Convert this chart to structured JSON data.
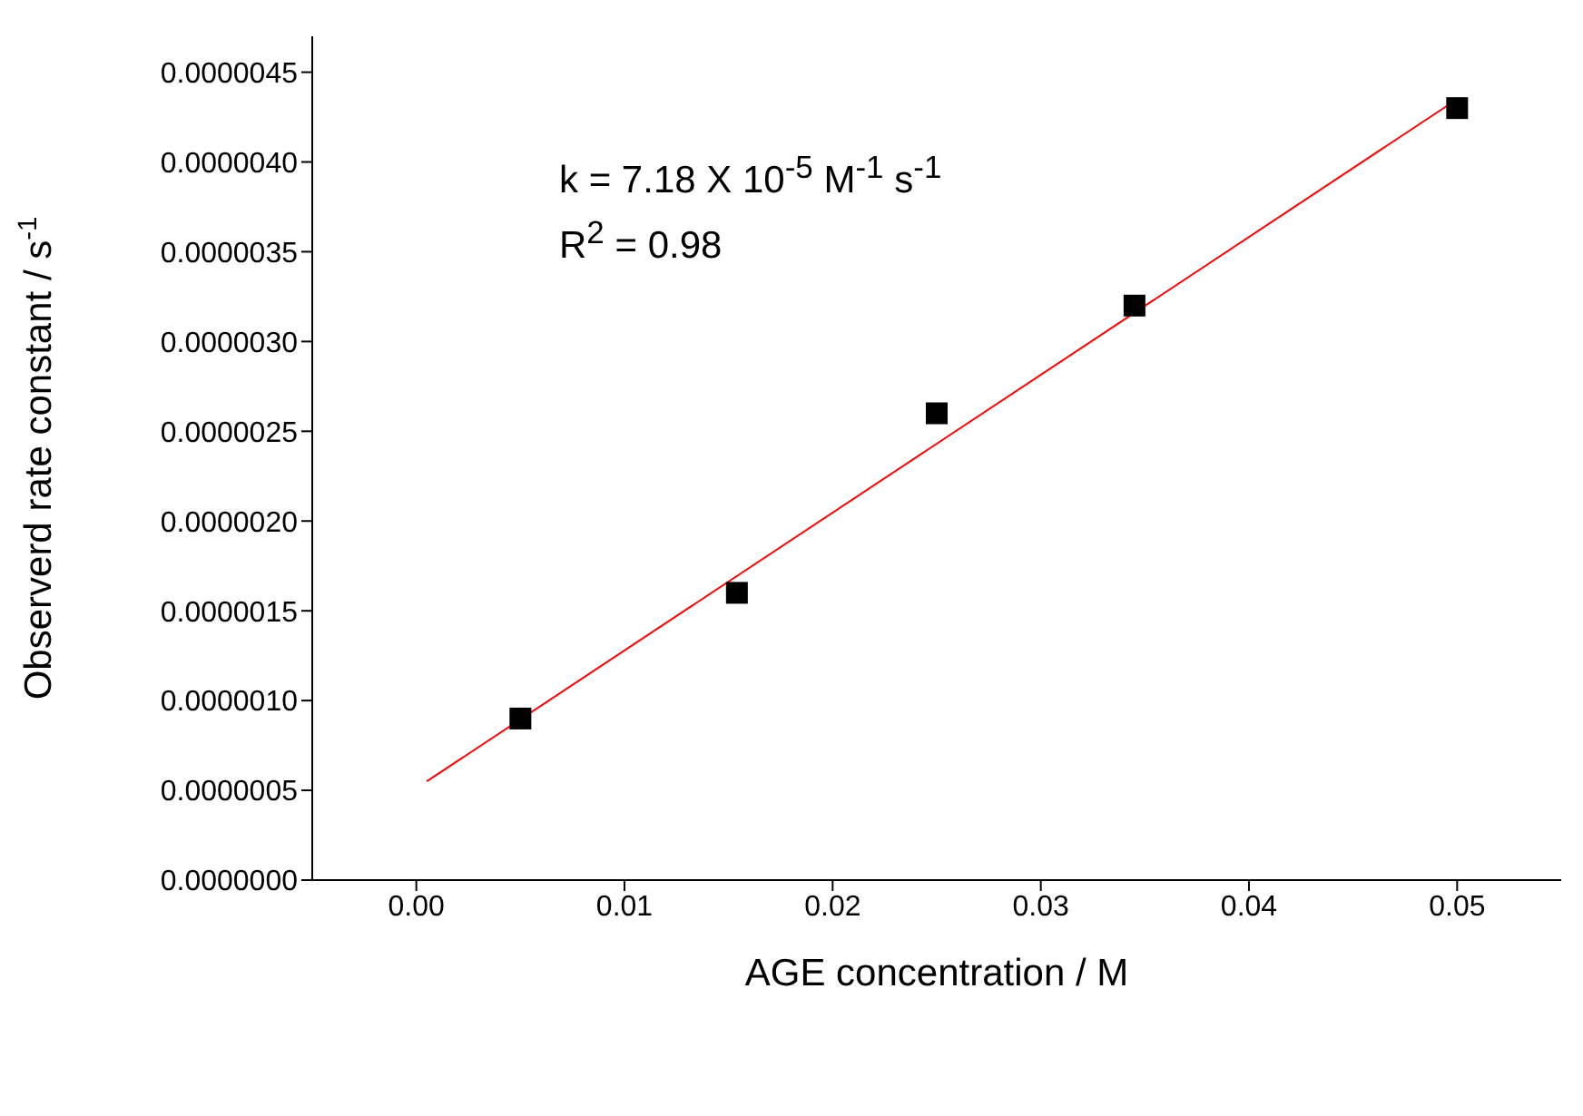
{
  "chart_data": {
    "type": "scatter",
    "xlabel": "AGE concentration / M",
    "ylabel": "Observerd rate constant / s$^{-1}$",
    "annotations": [
      "k = 7.18 X 10$^{-5}$ M$^{-1}$ s$^{-1}$",
      "R$^{2}$ = 0.98"
    ],
    "x": [
      0.005,
      0.0154,
      0.025,
      0.0345,
      0.05
    ],
    "series": [
      {
        "color": "#000000",
        "marker": "square",
        "values": [
          9e-07,
          1.6e-06,
          2.6e-06,
          3.2e-06,
          4.3e-06
        ]
      },
      {
        "type": "line",
        "color": "#ff0000",
        "marker": "none",
        "x": [
          0.0005,
          0.05
        ],
        "values": [
          5.5e-07,
          4.35e-06
        ]
      }
    ],
    "xlim": [
      -0.005,
      0.055
    ],
    "xticks": [
      {
        "value": 0,
        "label": "0.00"
      },
      {
        "value": 0.01,
        "label": "0.01"
      },
      {
        "value": 0.02,
        "label": "0.02"
      },
      {
        "value": 0.03,
        "label": "0.03"
      },
      {
        "value": 0.04,
        "label": "0.04"
      },
      {
        "value": 0.05,
        "label": "0.05"
      }
    ],
    "ylim": [
      0,
      4.7e-06
    ],
    "yticks": [
      {
        "value": 0,
        "label": "0.0000000"
      },
      {
        "value": 5e-07,
        "label": "0.0000005"
      },
      {
        "value": 1e-06,
        "label": "0.0000010"
      },
      {
        "value": 1.5e-06,
        "label": "0.0000015"
      },
      {
        "value": 2e-06,
        "label": "0.0000020"
      },
      {
        "value": 2.5e-06,
        "label": "0.0000025"
      },
      {
        "value": 3e-06,
        "label": "0.0000030"
      },
      {
        "value": 3.5e-06,
        "label": "0.0000035"
      },
      {
        "value": 4e-06,
        "label": "0.0000040"
      },
      {
        "value": 4.5e-06,
        "label": "0.0000045"
      }
    ],
    "grid": false,
    "legend": false
  }
}
